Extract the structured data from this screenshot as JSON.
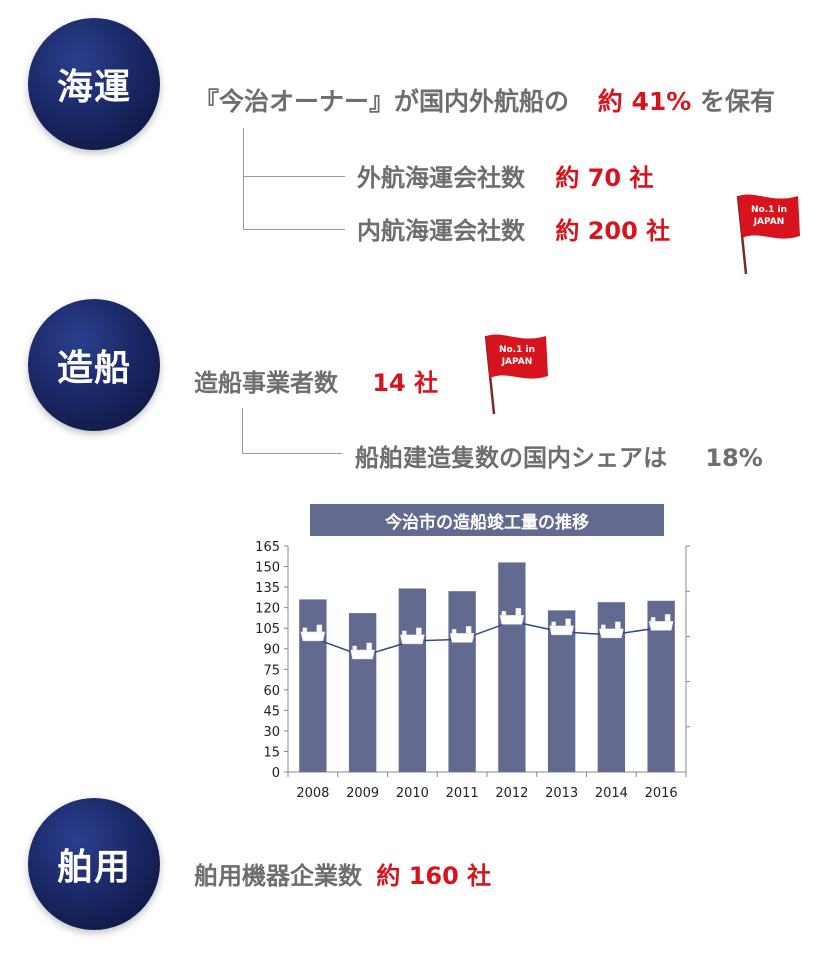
{
  "sections": {
    "shipping": {
      "circle": "海運",
      "headline_pre": "『今治オーナー』が国内外航船の",
      "headline_value": "約 41%",
      "headline_post": "を保有",
      "item1_label": "外航海運会社数",
      "item1_value": "約 70 社",
      "item2_label": "内航海運会社数",
      "item2_value": "約 200 社",
      "flag_text1": "No.1 in",
      "flag_text2": "JAPAN"
    },
    "shipbuilding": {
      "circle": "造船",
      "label": "造船事業者数",
      "value": "14 社",
      "flag_text1": "No.1 in",
      "flag_text2": "JAPAN",
      "share_label": "船舶建造隻数の国内シェアは",
      "share_value": "18%"
    },
    "marine": {
      "circle": "舶用",
      "label": "舶用機器企業数",
      "value": "約 160 社"
    }
  },
  "chart_data": {
    "type": "bar",
    "title": "今治市の造船竣工量の推移",
    "categories": [
      "2008",
      "2009",
      "2010",
      "2011",
      "2012",
      "2013",
      "2014",
      "2016"
    ],
    "series": [
      {
        "axis": "left",
        "values": [
          126,
          116,
          134,
          132,
          153,
          118,
          124,
          125
        ]
      },
      {
        "axis": "right",
        "type": "line",
        "values": [
          89,
          77,
          87,
          88,
          100,
          93,
          91,
          96
        ]
      }
    ],
    "y_left": {
      "min": 0,
      "max": 165,
      "ticks": [
        0,
        15,
        30,
        45,
        60,
        75,
        90,
        105,
        120,
        135,
        150,
        165
      ]
    },
    "y_right": {
      "min": 0,
      "max": 150,
      "ticks": [
        30,
        60,
        90,
        120,
        150
      ]
    },
    "colors": {
      "bar": "#626b8f",
      "line": "#2f4a8a",
      "ship": "#ffffff"
    }
  }
}
